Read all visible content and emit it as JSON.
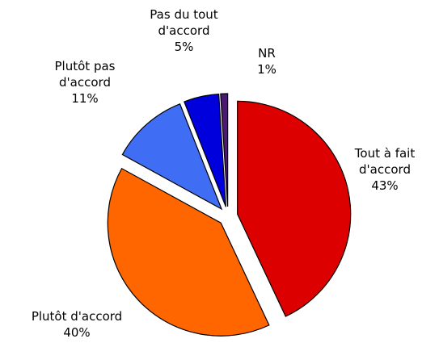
{
  "chart_data": {
    "type": "pie",
    "categories": [
      "Tout à fait d'accord",
      "Plutôt d'accord",
      "Plutôt pas d'accord",
      "Pas du tout d'accord",
      "NR"
    ],
    "values": [
      43,
      40,
      11,
      5,
      1
    ],
    "value_labels": [
      "43%",
      "40%",
      "11%",
      "5%",
      "1%"
    ],
    "colors": [
      "#dd0000",
      "#ff6600",
      "#3f6ef5",
      "#0000dd",
      "#4a1a70"
    ]
  }
}
